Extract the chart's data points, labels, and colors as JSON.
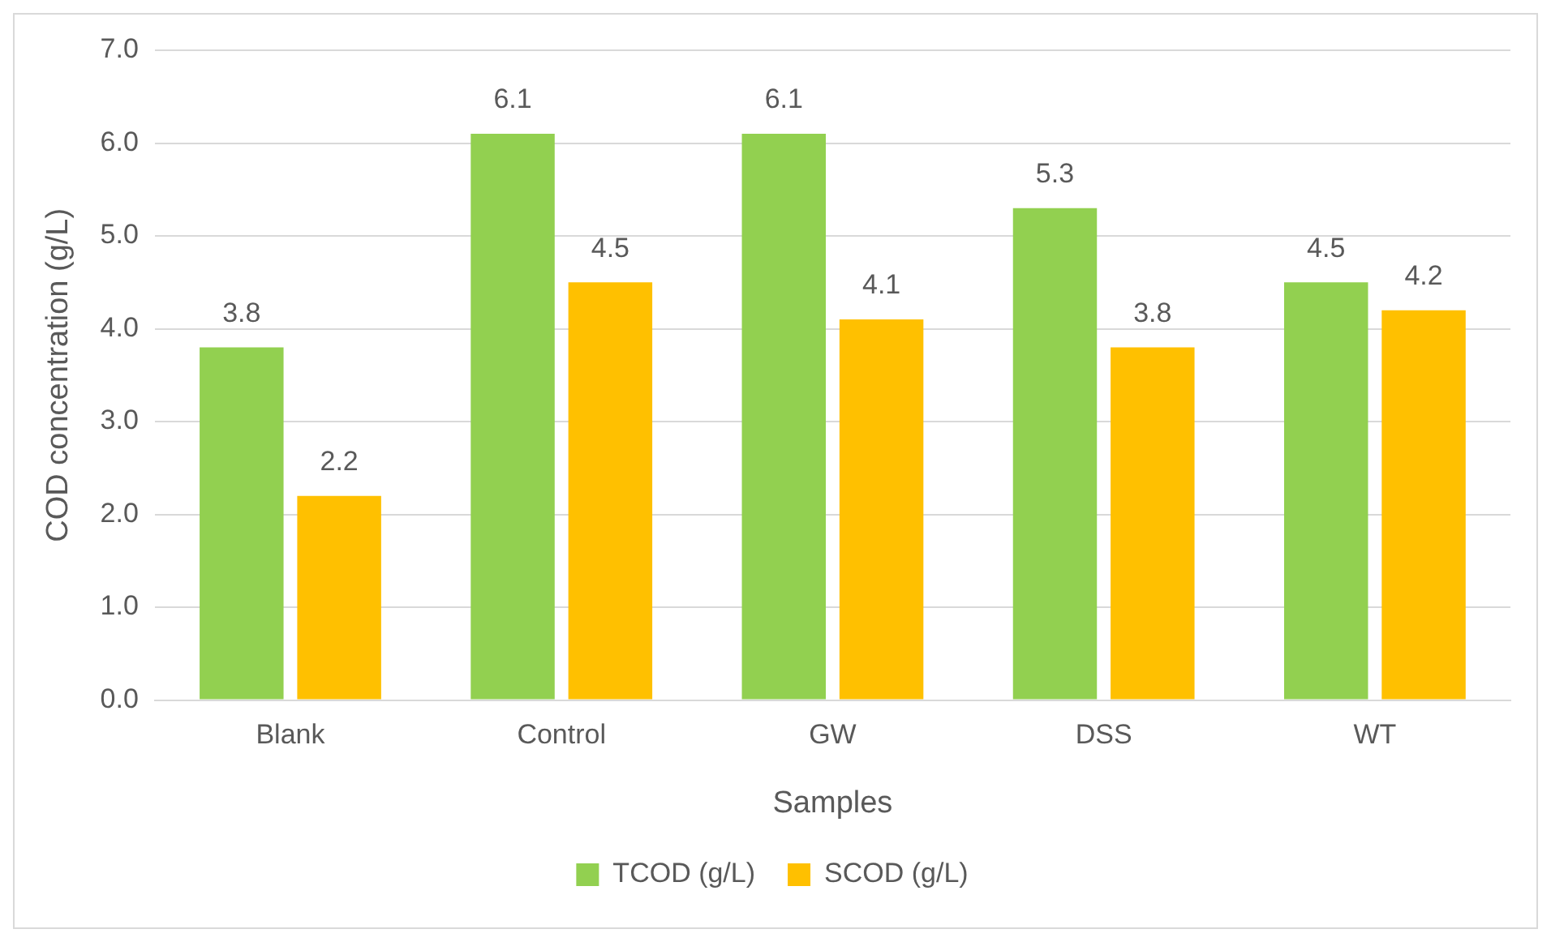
{
  "chart_data": {
    "type": "bar",
    "xlabel": "Samples",
    "ylabel": "COD concentration (g/L)",
    "categories": [
      "Blank",
      "Control",
      "GW",
      "DSS",
      "WT"
    ],
    "series": [
      {
        "name": "TCOD (g/L)",
        "color": "#92d050",
        "values": [
          3.8,
          6.1,
          6.1,
          5.3,
          4.5
        ]
      },
      {
        "name": "SCOD (g/L)",
        "color": "#ffc000",
        "values": [
          2.2,
          4.5,
          4.1,
          3.8,
          4.2
        ]
      }
    ],
    "ylim": [
      0,
      7
    ],
    "yticks": [
      {
        "value": 0,
        "label": "0.0"
      },
      {
        "value": 1,
        "label": "1.0"
      },
      {
        "value": 2,
        "label": "2.0"
      },
      {
        "value": 3,
        "label": "3.0"
      },
      {
        "value": 4,
        "label": "4.0"
      },
      {
        "value": 5,
        "label": "5.0"
      },
      {
        "value": 6,
        "label": "6.0"
      },
      {
        "value": 7,
        "label": "7.0"
      }
    ],
    "grid": "y",
    "legend": "bottom",
    "data_labels": true
  }
}
